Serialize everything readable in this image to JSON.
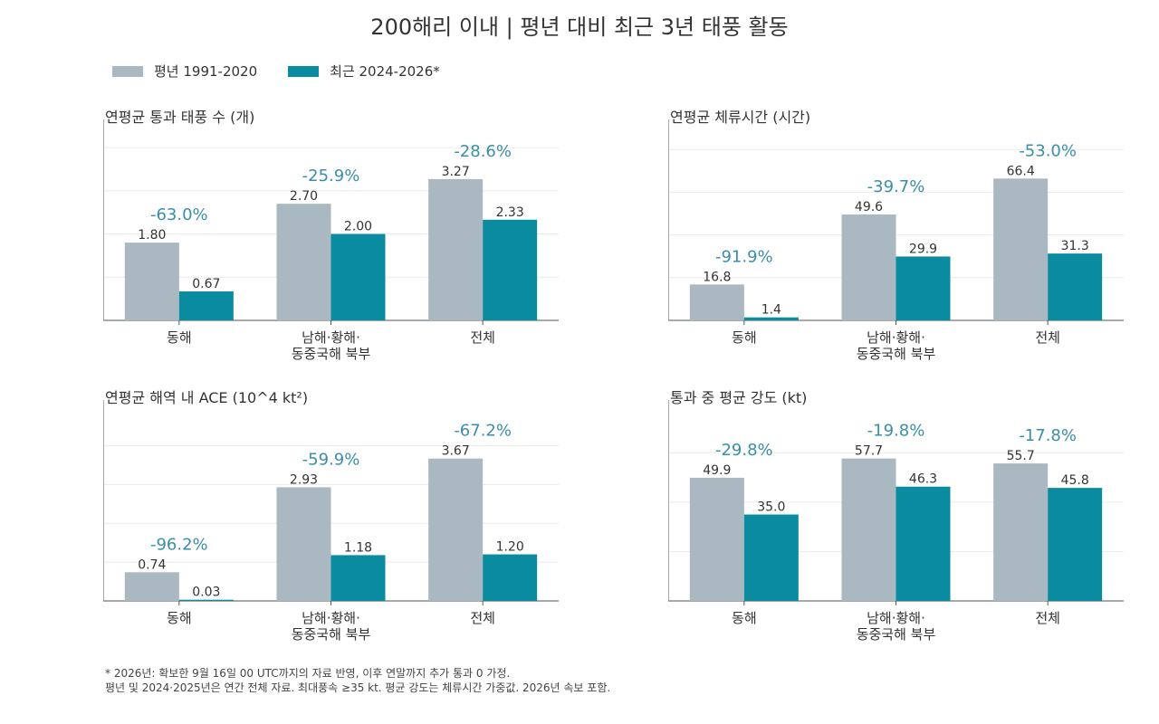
{
  "title": "200해리 이내 | 평년 대비 최근 3년 태풍 활동",
  "colors": {
    "normal": "#a9b8c1",
    "recent": "#0a8ba0",
    "pct": "#3a8fa8"
  },
  "legend": [
    {
      "label": "평년 1991-2020",
      "color": "#a9b8c1"
    },
    {
      "label": "최근 2024-2026*",
      "color": "#0a8ba0"
    }
  ],
  "footnote": {
    "line1": "* 2026년: 확보한 9월 16일 00 UTC까지의 자료 반영, 이후 연말까지 추가 통과 0 가정.",
    "line2": "평년 및 2024·2025년은 연간 전체 자료. 최대풍속 ≥35 kt. 평균 강도는 체류시간 가중값. 2026년 속보 포함."
  },
  "chart_data": [
    {
      "type": "bar",
      "title": "연평균 통과 태풍 수 (개)",
      "categories": [
        [
          "동해"
        ],
        [
          "남해·황해·",
          "동중국해 북부"
        ],
        [
          "전체"
        ]
      ],
      "series": [
        {
          "name": "평년 1991-2020",
          "values": [
            1.8,
            2.7,
            3.27
          ],
          "labels": [
            "1.80",
            "2.70",
            "3.27"
          ]
        },
        {
          "name": "최근 2024-2026*",
          "values": [
            0.67,
            2.0,
            2.33
          ],
          "labels": [
            "0.67",
            "2.00",
            "2.33"
          ]
        }
      ],
      "pct_change": [
        "-63.0%",
        "-25.9%",
        "-28.6%"
      ],
      "ylim": [
        0,
        4.4
      ],
      "yticks": [
        0,
        1,
        2,
        3,
        4
      ],
      "ytick_labels": [
        "0",
        "1",
        "2",
        "3",
        "4"
      ],
      "grid": true
    },
    {
      "type": "bar",
      "title": "연평균 체류시간 (시간)",
      "categories": [
        [
          "동해"
        ],
        [
          "남해·황해·",
          "동중국해 북부"
        ],
        [
          "전체"
        ]
      ],
      "series": [
        {
          "name": "평년 1991-2020",
          "values": [
            16.8,
            49.6,
            66.4
          ],
          "labels": [
            "16.8",
            "49.6",
            "66.4"
          ]
        },
        {
          "name": "최근 2024-2026*",
          "values": [
            1.4,
            29.9,
            31.3
          ],
          "labels": [
            "1.4",
            "29.9",
            "31.3"
          ]
        }
      ],
      "pct_change": [
        "-91.9%",
        "-39.7%",
        "-53.0%"
      ],
      "ylim": [
        0,
        89
      ],
      "yticks": [
        0,
        20,
        40,
        60,
        80
      ],
      "ytick_labels": [
        "0",
        "20",
        "40",
        "60",
        "80"
      ],
      "grid": true
    },
    {
      "type": "bar",
      "title": "연평균 해역 내 ACE (10^4 kt²)",
      "categories": [
        [
          "동해"
        ],
        [
          "남해·황해·",
          "동중국해 북부"
        ],
        [
          "전체"
        ]
      ],
      "series": [
        {
          "name": "평년 1991-2020",
          "values": [
            0.74,
            2.93,
            3.67
          ],
          "labels": [
            "0.74",
            "2.93",
            "3.67"
          ]
        },
        {
          "name": "최근 2024-2026*",
          "values": [
            0.03,
            1.18,
            1.2
          ],
          "labels": [
            "0.03",
            "1.18",
            "1.20"
          ]
        }
      ],
      "pct_change": [
        "-96.2%",
        "-59.9%",
        "-67.2%"
      ],
      "ylim": [
        0,
        4.9
      ],
      "yticks": [
        0,
        1,
        2,
        3,
        4
      ],
      "ytick_labels": [
        "0",
        "1",
        "2",
        "3",
        "4"
      ],
      "grid": true
    },
    {
      "type": "bar",
      "title": "통과 중 평균 강도 (kt)",
      "categories": [
        [
          "동해"
        ],
        [
          "남해·황해·",
          "동중국해 북부"
        ],
        [
          "전체"
        ]
      ],
      "series": [
        {
          "name": "평년 1991-2020",
          "values": [
            49.9,
            57.7,
            55.7
          ],
          "labels": [
            "49.9",
            "57.7",
            "55.7"
          ]
        },
        {
          "name": "최근 2024-2026*",
          "values": [
            35.0,
            46.3,
            45.8
          ],
          "labels": [
            "35.0",
            "46.3",
            "45.8"
          ]
        }
      ],
      "pct_change": [
        "-29.8%",
        "-19.8%",
        "-17.8%"
      ],
      "ylim": [
        0,
        77
      ],
      "yticks": [
        0,
        20,
        40,
        60
      ],
      "ytick_labels": [
        "0",
        "20",
        "40",
        "60"
      ],
      "grid": true
    }
  ]
}
